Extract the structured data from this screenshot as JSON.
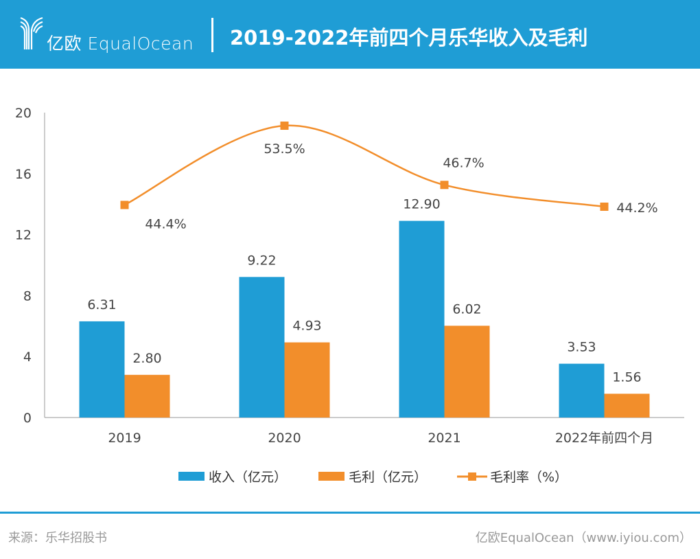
{
  "header": {
    "logo_text": "亿欧 EqualOcean",
    "title": "2019-2022年前四个月乐华收入及毛利",
    "background_color": "#1f9dd5"
  },
  "chart_data": {
    "type": "bar",
    "title": "2019-2022年前四个月乐华收入及毛利",
    "categories": [
      "2019",
      "2020",
      "2021",
      "2022年前四个月"
    ],
    "yticks": [
      "0",
      "4",
      "8",
      "12",
      "16",
      "20"
    ],
    "ylim": [
      0,
      20
    ],
    "y2lim": [
      20,
      55
    ],
    "y2_visible": false,
    "grid": false,
    "legend_position": "bottom",
    "series": [
      {
        "name": "收入（亿元）",
        "type": "bar",
        "color": "#1f9dd5",
        "values": [
          6.31,
          9.22,
          12.9,
          3.53
        ],
        "labels": [
          "6.31",
          "9.22",
          "12.90",
          "3.53"
        ]
      },
      {
        "name": "毛利（亿元）",
        "type": "bar",
        "color": "#f28e2b",
        "values": [
          2.8,
          4.93,
          6.02,
          1.56
        ],
        "labels": [
          "2.80",
          "4.93",
          "6.02",
          "1.56"
        ]
      },
      {
        "name": "毛利率（%）",
        "type": "line",
        "axis": "secondary",
        "smooth": true,
        "color": "#f28e2b",
        "values": [
          44.4,
          53.5,
          46.7,
          44.2
        ],
        "labels": [
          "44.4%",
          "53.5%",
          "46.7%",
          "44.2%"
        ]
      }
    ]
  },
  "footer": {
    "source": "来源：乐华招股书",
    "credit": "亿欧EqualOcean（www.iyiou.com）"
  }
}
